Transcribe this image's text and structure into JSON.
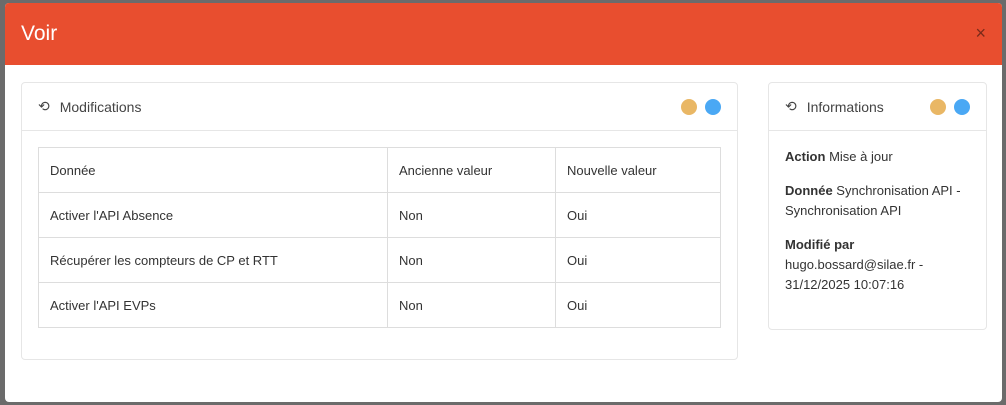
{
  "modal": {
    "title": "Voir",
    "close": "×"
  },
  "colors": {
    "header": "#e84e2f",
    "dot1": "#e9b765",
    "dot2": "#4aa8f4"
  },
  "modifications": {
    "title": "Modifications",
    "icon": "history-icon",
    "columns": [
      "Donnée",
      "Ancienne valeur",
      "Nouvelle valeur"
    ],
    "rows": [
      [
        "Activer l'API Absence",
        "Non",
        "Oui"
      ],
      [
        "Récupérer les compteurs de CP et RTT",
        "Non",
        "Oui"
      ],
      [
        "Activer l'API EVPs",
        "Non",
        "Oui"
      ]
    ]
  },
  "informations": {
    "title": "Informations",
    "icon": "history-icon",
    "action_label": "Action",
    "action_value": "Mise à jour",
    "donnee_label": "Donnée",
    "donnee_value": "Synchronisation API - Synchronisation API",
    "modifie_label": "Modifié par",
    "modifie_value": "hugo.bossard@silae.fr - 31/12/2025 10:07:16"
  }
}
